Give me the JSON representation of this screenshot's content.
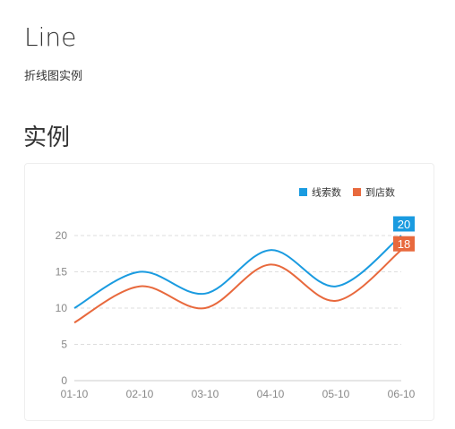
{
  "page": {
    "title": "Line",
    "subtitle": "折线图实例",
    "section_heading": "实例"
  },
  "colors": {
    "series_1": "#1a9be0",
    "series_2": "#e8693d",
    "grid": "#dddddd",
    "axis": "#cccccc"
  },
  "chart_data": {
    "type": "line",
    "smooth": true,
    "categories": [
      "01-10",
      "02-10",
      "03-10",
      "04-10",
      "05-10",
      "06-10"
    ],
    "series": [
      {
        "name": "线索数",
        "values": [
          10,
          15,
          12,
          18,
          13,
          20
        ]
      },
      {
        "name": "到店数",
        "values": [
          8,
          13,
          10,
          16,
          11,
          18
        ]
      }
    ],
    "end_labels": [
      "20",
      "18"
    ],
    "y_ticks": [
      "0",
      "5",
      "10",
      "15",
      "20"
    ],
    "ylim": [
      0,
      20
    ],
    "grid": "horizontal dashed",
    "legend_position": "top-right"
  }
}
